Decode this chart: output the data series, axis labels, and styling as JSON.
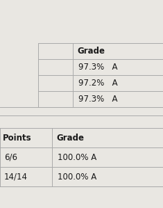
{
  "bg_color": "#e9e7e2",
  "line_color": "#aaaaaa",
  "text_color": "#1a1a1a",
  "figsize": [
    2.35,
    2.99
  ],
  "dpi": 100,
  "top_section": {
    "col2_header": "Grade",
    "rows": [
      "97.3%   A",
      "97.2%   A",
      "97.3%   A"
    ]
  },
  "bottom_section": {
    "col1_header": "Points",
    "col2_header": "Grade",
    "rows": [
      {
        "col1": "6/6",
        "col2": "100.0% A"
      },
      {
        "col1": "14/14",
        "col2": "100.0% A"
      }
    ]
  }
}
